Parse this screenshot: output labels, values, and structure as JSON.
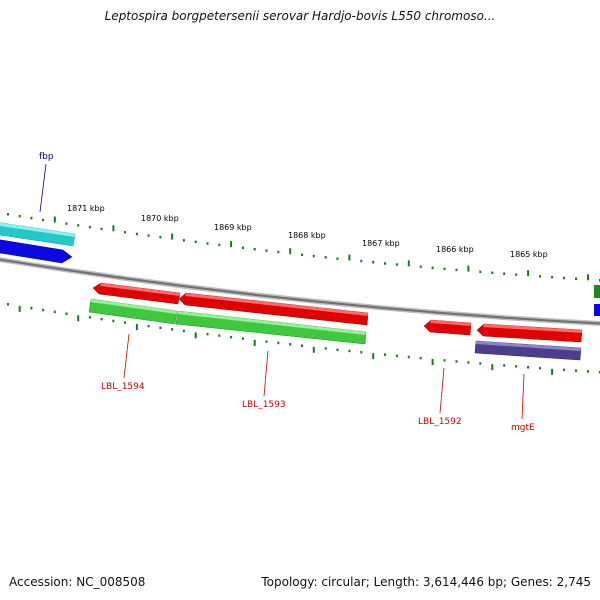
{
  "header": {
    "title": "Leptospira borgpetersenii serovar Hardjo-bovis L550 chromoso..."
  },
  "footer": {
    "accession": "Accession: NC_008508",
    "summary": "Topology: circular; Length: 3,614,446 bp; Genes: 2,745"
  },
  "scale_labels": [
    "1871 kbp",
    "1870 kbp",
    "1869 kbp",
    "1868 kbp",
    "1867 kbp",
    "1866 kbp",
    "1865 kbp"
  ],
  "gene_labels": [
    {
      "text": "fbp",
      "color": "#000099"
    },
    {
      "text": "LBL_1594",
      "color": "#cc0000"
    },
    {
      "text": "LBL_1593",
      "color": "#cc0000"
    },
    {
      "text": "LBL_1592",
      "color": "#cc0000"
    },
    {
      "text": "mgtE",
      "color": "#cc0000"
    }
  ],
  "colors": {
    "backbone": "#8a8a8a",
    "tick": "#1a7a1a",
    "cds_forward": "#e00000",
    "cds_reverse_cyan": "#25c8c8",
    "cds_blue": "#0a0ae0",
    "cds_green": "#3ec83e",
    "cds_purple": "#4a3f8c",
    "cds_darkgreen": "#1a8a1a",
    "label_blue": "#000099",
    "label_red": "#cc0000"
  }
}
